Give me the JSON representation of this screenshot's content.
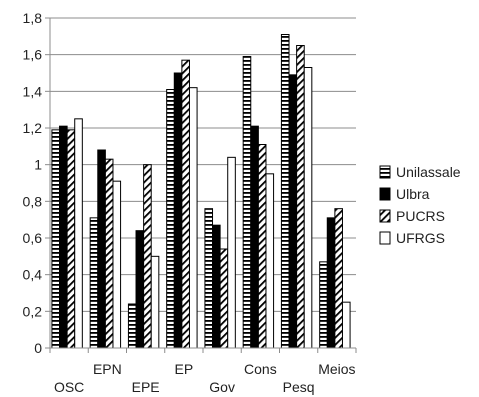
{
  "chart_data": {
    "type": "bar",
    "title": "",
    "xlabel": "",
    "ylabel": "",
    "ylim": [
      0,
      1.8
    ],
    "yticks": [
      0,
      0.2,
      0.4,
      0.6,
      0.8,
      1,
      1.2,
      1.4,
      1.6,
      1.8
    ],
    "ytick_labels": [
      "0",
      "0,2",
      "0,4",
      "0,6",
      "0,8",
      "1",
      "1,2",
      "1,4",
      "1,6",
      "1,8"
    ],
    "grid": "horizontal",
    "legend_position": "right",
    "categories": [
      "OSC",
      "EPN",
      "EPE",
      "EP",
      "Gov",
      "Cons",
      "Pesq",
      "Meios"
    ],
    "series": [
      {
        "name": "Unilassale",
        "pattern": "horizontal-stripes",
        "color": "#000000",
        "values": [
          1.19,
          0.71,
          0.24,
          1.41,
          0.76,
          1.59,
          1.71,
          0.47
        ]
      },
      {
        "name": "Ulbra",
        "pattern": "solid",
        "color": "#000000",
        "values": [
          1.21,
          1.08,
          0.64,
          1.5,
          0.67,
          1.21,
          1.49,
          0.71
        ]
      },
      {
        "name": "PUCRS",
        "pattern": "diagonal-stripes",
        "color": "#000000",
        "values": [
          1.19,
          1.03,
          1.0,
          1.57,
          0.54,
          1.11,
          1.65,
          0.76
        ]
      },
      {
        "name": "UFRGS",
        "pattern": "white",
        "color": "#ffffff",
        "values": [
          1.25,
          0.91,
          0.5,
          1.42,
          1.04,
          0.95,
          1.53,
          0.25
        ]
      }
    ]
  }
}
